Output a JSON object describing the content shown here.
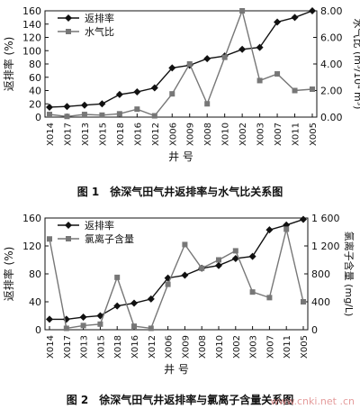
{
  "chart_data": [
    {
      "type": "line",
      "title": "",
      "xlabel": "井 号",
      "ylabel": "返排率 (%)",
      "y2label": "水气比 (m³/10⁴ m³)",
      "categories": [
        "X014",
        "X017",
        "X013",
        "X015",
        "X018",
        "X016",
        "X012",
        "X006",
        "X009",
        "X008",
        "X010",
        "X002",
        "X003",
        "X007",
        "X011",
        "X005"
      ],
      "ylim": [
        0,
        160
      ],
      "y2lim": [
        0,
        8
      ],
      "yticks": [
        "0",
        "20",
        "40",
        "60",
        "80",
        "100",
        "120",
        "140",
        "160"
      ],
      "y2ticks": [
        "0.00",
        "2.00",
        "4.00",
        "6.00",
        "8.00"
      ],
      "series": [
        {
          "name": "返排率",
          "axis": "left",
          "marker": "diamond",
          "color": "#111111",
          "values": [
            15,
            16,
            18,
            20,
            34,
            38,
            44,
            74,
            78,
            88,
            92,
            102,
            105,
            143,
            150,
            160
          ]
        },
        {
          "name": "水气比",
          "axis": "right",
          "marker": "square",
          "color": "#777777",
          "values": [
            0.2,
            0.05,
            0.2,
            0.15,
            0.25,
            0.6,
            0.1,
            1.75,
            4.0,
            1.0,
            4.5,
            8.0,
            2.75,
            3.25,
            2.0,
            2.1
          ]
        }
      ],
      "legend": "top-left",
      "caption": "图 1　徐深气田气井返排率与水气比关系图"
    },
    {
      "type": "line",
      "title": "",
      "xlabel": "井 号",
      "ylabel": "返排率 (%)",
      "y2label": "氯离子含量 (mg/L)",
      "categories": [
        "X014",
        "X017",
        "X013",
        "X015",
        "X018",
        "X016",
        "X012",
        "X006",
        "X009",
        "X008",
        "X010",
        "X002",
        "X003",
        "X007",
        "X011",
        "X005"
      ],
      "ylim": [
        0,
        160
      ],
      "y2lim": [
        0,
        1600
      ],
      "yticks": [
        "0",
        "40",
        "80",
        "120",
        "160"
      ],
      "y2ticks": [
        "0",
        "400",
        "800",
        "1 200",
        "1 600"
      ],
      "series": [
        {
          "name": "返排率",
          "axis": "left",
          "marker": "diamond",
          "color": "#111111",
          "values": [
            15,
            15,
            18,
            20,
            34,
            38,
            44,
            74,
            78,
            88,
            92,
            102,
            105,
            143,
            150,
            158
          ]
        },
        {
          "name": "氯离子含量",
          "axis": "right",
          "marker": "square",
          "color": "#777777",
          "values": [
            1300,
            20,
            60,
            80,
            750,
            50,
            20,
            650,
            1220,
            880,
            1000,
            1130,
            540,
            460,
            1440,
            400
          ]
        }
      ],
      "legend": "top-left",
      "caption": "图 2　徐深气田气井返排率与氯离子含量关系图"
    }
  ],
  "watermark": "www.cnki.net .cn"
}
